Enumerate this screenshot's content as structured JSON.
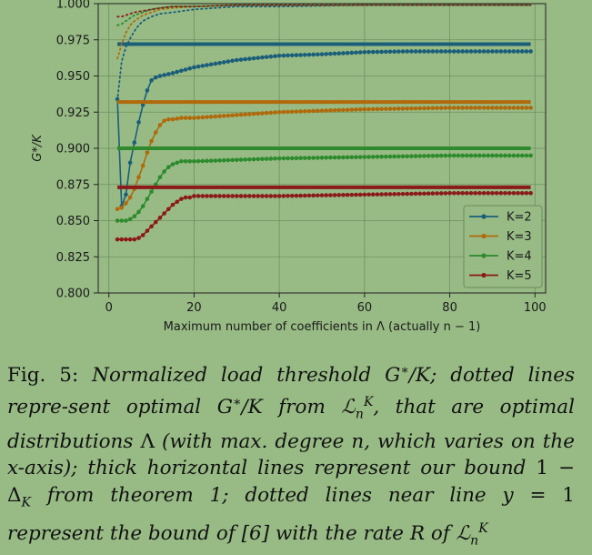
{
  "chart_data": {
    "type": "line",
    "title": "",
    "xlabel": "Maximum number of coefficients in Λ (actually n − 1)",
    "ylabel": "G*/K",
    "xlim": [
      -2.5,
      102.5
    ],
    "ylim": [
      0.8,
      1.0
    ],
    "xticks": [
      0,
      20,
      40,
      60,
      80,
      100
    ],
    "yticks": [
      0.8,
      0.825,
      0.85,
      0.875,
      0.9,
      0.925,
      0.95,
      0.975,
      1.0
    ],
    "ytick_labels": [
      "0.800",
      "0.825",
      "0.850",
      "0.875",
      "0.900",
      "0.925",
      "0.950",
      "0.975",
      "1.000"
    ],
    "grid": true,
    "legend_position": "lower-right",
    "series": [
      {
        "name": "K=2",
        "color": "#1b5e79",
        "optimal_curve": {
          "x": [
            2,
            3,
            4,
            5,
            6,
            7,
            8,
            9,
            10,
            11,
            12,
            15,
            20,
            30,
            40,
            50,
            60,
            70,
            80,
            90,
            99
          ],
          "y": [
            0.934,
            0.86,
            0.868,
            0.89,
            0.904,
            0.918,
            0.93,
            0.94,
            0.947,
            0.949,
            0.95,
            0.952,
            0.956,
            0.961,
            0.964,
            0.965,
            0.9665,
            0.967,
            0.967,
            0.967,
            0.967
          ]
        },
        "bound": 0.972,
        "rate_bound": {
          "x": [
            2,
            3,
            4,
            5,
            6,
            7,
            8,
            10,
            12,
            15,
            20,
            25,
            30,
            40,
            60,
            80,
            99
          ],
          "y": [
            0.933,
            0.96,
            0.97,
            0.976,
            0.981,
            0.985,
            0.988,
            0.991,
            0.993,
            0.994,
            0.996,
            0.997,
            0.998,
            0.998,
            0.999,
            0.999,
            0.999
          ]
        }
      },
      {
        "name": "K=3",
        "color": "#b06a0c",
        "optimal_curve": {
          "x": [
            2,
            3,
            4,
            5,
            6,
            7,
            8,
            9,
            10,
            11,
            12,
            13,
            14,
            15,
            17,
            20,
            30,
            40,
            50,
            60,
            70,
            80,
            90,
            99
          ],
          "y": [
            0.858,
            0.859,
            0.862,
            0.866,
            0.872,
            0.88,
            0.888,
            0.897,
            0.905,
            0.911,
            0.916,
            0.919,
            0.92,
            0.92,
            0.921,
            0.921,
            0.923,
            0.925,
            0.926,
            0.927,
            0.9275,
            0.928,
            0.928,
            0.928
          ]
        },
        "bound": 0.932,
        "rate_bound": {
          "x": [
            2,
            3,
            4,
            5,
            6,
            8,
            10,
            12,
            15,
            20,
            30,
            40,
            60,
            80,
            99
          ],
          "y": [
            0.962,
            0.972,
            0.98,
            0.985,
            0.988,
            0.992,
            0.994,
            0.996,
            0.997,
            0.998,
            0.999,
            0.999,
            0.999,
            0.999,
            0.999
          ]
        }
      },
      {
        "name": "K=4",
        "color": "#2d8a2d",
        "optimal_curve": {
          "x": [
            2,
            3,
            4,
            5,
            6,
            7,
            8,
            9,
            10,
            11,
            12,
            13,
            14,
            15,
            16,
            17,
            18,
            20,
            30,
            40,
            50,
            60,
            70,
            80,
            90,
            99
          ],
          "y": [
            0.85,
            0.85,
            0.85,
            0.851,
            0.853,
            0.856,
            0.86,
            0.865,
            0.87,
            0.875,
            0.88,
            0.884,
            0.887,
            0.889,
            0.89,
            0.891,
            0.891,
            0.891,
            0.892,
            0.893,
            0.8935,
            0.894,
            0.8945,
            0.895,
            0.895,
            0.895
          ]
        },
        "bound": 0.9,
        "rate_bound": {
          "x": [
            2,
            3,
            4,
            5,
            6,
            8,
            10,
            12,
            15,
            20,
            30,
            40,
            60,
            80,
            99
          ],
          "y": [
            0.985,
            0.986,
            0.988,
            0.99,
            0.992,
            0.994,
            0.996,
            0.997,
            0.998,
            0.998,
            0.999,
            0.999,
            0.999,
            0.999,
            0.999
          ]
        }
      },
      {
        "name": "K=5",
        "color": "#8b1a1a",
        "optimal_curve": {
          "x": [
            2,
            4,
            6,
            7,
            8,
            9,
            10,
            11,
            12,
            13,
            14,
            15,
            16,
            17,
            18,
            19,
            20,
            21,
            22,
            25,
            30,
            40,
            50,
            60,
            70,
            80,
            90,
            99
          ],
          "y": [
            0.837,
            0.837,
            0.837,
            0.838,
            0.84,
            0.843,
            0.846,
            0.849,
            0.852,
            0.855,
            0.858,
            0.861,
            0.863,
            0.865,
            0.866,
            0.866,
            0.867,
            0.867,
            0.867,
            0.867,
            0.867,
            0.867,
            0.8675,
            0.868,
            0.8685,
            0.869,
            0.869,
            0.869
          ]
        },
        "bound": 0.873,
        "rate_bound": {
          "x": [
            2,
            3,
            4,
            5,
            6,
            8,
            10,
            12,
            15,
            20,
            30,
            40,
            60,
            80,
            99
          ],
          "y": [
            0.991,
            0.991,
            0.992,
            0.993,
            0.994,
            0.995,
            0.996,
            0.997,
            0.998,
            0.998,
            0.999,
            0.999,
            0.999,
            0.999,
            0.999
          ]
        }
      }
    ]
  },
  "caption": {
    "fig_label": "Fig. 5:",
    "t1": "Normalized load threshold",
    "t2": "; dotted lines repre-sent optimal",
    "t3": "from",
    "t4": ", that are optimal distributions",
    "t5": "(with max. degree",
    "t6": ", which varies on the",
    "t7": "-axis); thick horizontal lines represent our bound",
    "t8": "from theorem 1; dotted lines near line",
    "t9": "represent the bound of [6] with the rate",
    "t10": "of",
    "m_G": "G",
    "m_star": "∗",
    "m_over_K": "/K",
    "m_L": "ℒ",
    "m_sup_K": "K",
    "m_sub_n": "n",
    "m_Lambda": "Λ",
    "m_n": "n",
    "m_x": "x",
    "m_one": "1",
    "m_minus": " − ",
    "m_Delta": "Δ",
    "m_sub_K": "K",
    "m_y": "y",
    "m_eq": " = ",
    "m_R": "R"
  }
}
